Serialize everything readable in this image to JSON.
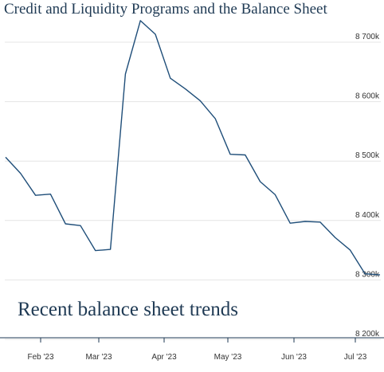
{
  "header": {
    "title": "Credit and Liquidity Programs and the Balance Sheet"
  },
  "chart_data": {
    "type": "line",
    "title": "",
    "subtitle": "Recent balance sheet trends",
    "xlabel": "",
    "ylabel": "",
    "x_tick_labels": [
      "Feb '23",
      "Mar '23",
      "Apr '23",
      "May '23",
      "Jun '23",
      "Jul '23"
    ],
    "y_tick_labels": [
      "8 200k",
      "8 300k",
      "8 400k",
      "8 500k",
      "8 600k",
      "8 700k"
    ],
    "y_ticks": [
      8200,
      8300,
      8400,
      8500,
      8600,
      8700
    ],
    "ylim": [
      8200,
      8700
    ],
    "grid": true,
    "series": [
      {
        "values": [
          8497,
          8470,
          8433,
          8435,
          8385,
          8382,
          8340,
          8342,
          8637,
          8727,
          8704,
          8630,
          8612,
          8592,
          8562,
          8502,
          8501,
          8456,
          8434,
          8386,
          8389,
          8388,
          8362,
          8341,
          8301,
          8299
        ]
      }
    ],
    "colors": {
      "line": "#1f4e79",
      "text": "#1f3a54",
      "grid": "#e4e4e4"
    }
  }
}
